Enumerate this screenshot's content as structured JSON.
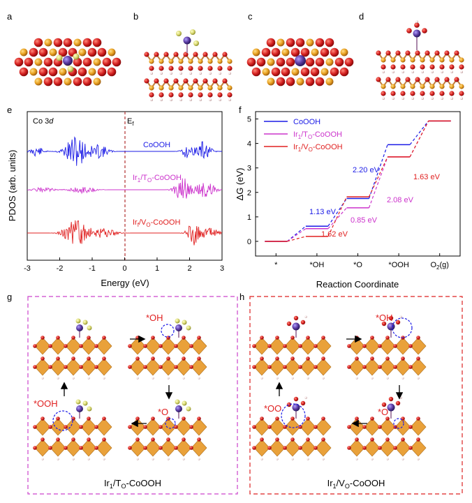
{
  "panel_letters": [
    "a",
    "b",
    "c",
    "d",
    "e",
    "f",
    "g",
    "h"
  ],
  "colors": {
    "coooh": "#1a1ae6",
    "ir_to": "#cc33cc",
    "ir_vo": "#e02020",
    "oxygen": "#d42020",
    "cobalt": "#e8a020",
    "iridium": "#5a3aa0",
    "fluorine": "#d8d870",
    "frame_g": "#cc44cc",
    "frame_h": "#dd2222"
  },
  "pdos": {
    "ylabel": "PDOS (arb. units)",
    "xlabel": "Energy (eV)",
    "corner_label_main": "Co 3",
    "corner_label_italic": "d",
    "fermi_main": "E",
    "fermi_sub": "f",
    "xticks": [
      "-3",
      "-2",
      "-1",
      "0",
      "1",
      "2",
      "3"
    ],
    "curves": [
      {
        "label_main": "CoOOH",
        "color": "#1a1ae6"
      },
      {
        "label_main": "Ir",
        "label_sub1": "1",
        "label_mid": "/T",
        "label_sub2": "O",
        "label_end": "-CoOOH",
        "color": "#cc33cc"
      },
      {
        "label_main": "Ir",
        "label_sub1": "f",
        "label_mid": "/V",
        "label_sub2": "O",
        "label_end": "-CoOOH",
        "color": "#e02020"
      }
    ]
  },
  "chart_data": {
    "type": "line",
    "xlabel": "Reaction Coordinate",
    "ylabel": "ΔG (eV)",
    "categories": [
      "*",
      "*OH",
      "*O",
      "*OOH",
      "O2(g)"
    ],
    "ylim": [
      -0.6,
      5.3
    ],
    "yticks": [
      "0",
      "1",
      "2",
      "3",
      "4",
      "5"
    ],
    "series": [
      {
        "name": "CoOOH",
        "color": "#1a1ae6",
        "values": [
          0,
          0.62,
          1.75,
          3.95,
          4.92
        ]
      },
      {
        "name": "Ir1/TO-CoOOH",
        "color": "#cc33cc",
        "values": [
          0,
          0.52,
          1.37,
          3.45,
          4.92
        ]
      },
      {
        "name": "Ir1/VO-CoOOH",
        "color": "#e02020",
        "values": [
          0,
          0.2,
          1.82,
          3.45,
          4.92
        ]
      }
    ],
    "annotations": [
      {
        "text": "1.13 eV",
        "color": "#1a1ae6"
      },
      {
        "text": "2.20 eV",
        "color": "#1a1ae6"
      },
      {
        "text": "1.62 eV",
        "color": "#e02020"
      },
      {
        "text": "1.63 eV",
        "color": "#e02020"
      },
      {
        "text": "0.85 eV",
        "color": "#cc33cc"
      },
      {
        "text": "2.08 eV",
        "color": "#cc33cc"
      }
    ],
    "legend_placement": "top-left",
    "legend": [
      {
        "main": "CoOOH"
      },
      {
        "main": "Ir",
        "sub1": "1",
        "mid": "/T",
        "sub2": "O",
        "end": "-CoOOH"
      },
      {
        "main": "Ir",
        "sub1": "1",
        "mid": "/V",
        "sub2": "O",
        "end": "-CoOOH"
      }
    ],
    "x_last_main": "O",
    "x_last_sub": "2",
    "x_last_end": "(g)"
  },
  "cycle_g": {
    "labels": [
      "*OH",
      "*O",
      "*OOH"
    ],
    "caption_main": "Ir",
    "caption_sub1": "1",
    "caption_mid": "/T",
    "caption_sub2": "O",
    "caption_end": "-CoOOH"
  },
  "cycle_h": {
    "labels": [
      "*OH",
      "*O",
      "*OO"
    ],
    "caption_main": "Ir",
    "caption_sub1": "1",
    "caption_mid": "/V",
    "caption_sub2": "O",
    "caption_end": "-CoOOH"
  }
}
